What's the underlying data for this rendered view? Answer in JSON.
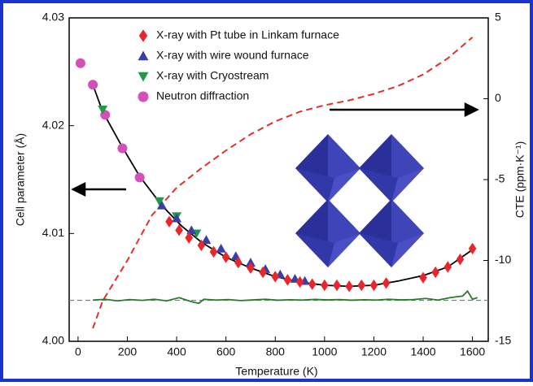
{
  "chart_data": {
    "type": "scatter",
    "xlabel": "Temperature (K)",
    "ylabel": "Cell parameter (Å)",
    "y2label": "CTE (ppm·K⁻¹)",
    "xlim": [
      -36,
      1664
    ],
    "xticks": [
      0,
      200,
      400,
      600,
      800,
      1000,
      1200,
      1400,
      1600
    ],
    "ylim": [
      4.0,
      4.03
    ],
    "yticks": [
      {
        "value": 4.0,
        "label": "4.00"
      },
      4.01,
      4.02,
      4.03
    ],
    "y2lim": [
      -15,
      5
    ],
    "y2ticks": [
      5,
      0,
      -5,
      -10,
      -15
    ],
    "legend": "top-left",
    "series": [
      {
        "name": "X-ray with Pt tube in Linkam furnace",
        "color": "#e8262b",
        "marker": "diamond",
        "x": [
          370,
          410,
          450,
          500,
          550,
          600,
          650,
          700,
          750,
          800,
          850,
          900,
          950,
          1000,
          1050,
          1100,
          1150,
          1200,
          1250,
          1400,
          1450,
          1500,
          1550,
          1600
        ],
        "values": [
          4.0111,
          4.0103,
          4.0096,
          4.0089,
          4.0083,
          4.0078,
          4.0073,
          4.0068,
          4.0064,
          4.006,
          4.0057,
          4.0055,
          4.0053,
          4.0052,
          4.0052,
          4.0051,
          4.0052,
          4.0052,
          4.0054,
          4.0059,
          4.0064,
          4.0069,
          4.0076,
          4.0086
        ]
      },
      {
        "name": "X-ray with wire wound furnace",
        "color": "#3a3fa5",
        "marker": "triangle-up",
        "x": [
          340,
          400,
          460,
          520,
          580,
          640,
          700,
          760,
          820,
          880,
          920
        ],
        "values": [
          4.0126,
          4.0114,
          4.0103,
          4.0094,
          4.0086,
          4.0079,
          4.0073,
          4.0067,
          4.0062,
          4.0058,
          4.0056
        ]
      },
      {
        "name": "X-ray with Cryostream",
        "color": "#1f9a48",
        "marker": "triangle-down",
        "x": [
          100,
          330,
          400,
          480
        ],
        "values": [
          4.0215,
          4.013,
          4.0116,
          4.01
        ]
      },
      {
        "name": "Neutron diffraction",
        "color": "#d64fb8",
        "marker": "circle",
        "x": [
          10,
          60,
          110,
          180,
          250
        ],
        "values": [
          4.0258,
          4.0238,
          4.021,
          4.0179,
          4.0152
        ]
      },
      {
        "color": "#000000",
        "marker": "line",
        "x": [
          60,
          100,
          180,
          250,
          340,
          420,
          500,
          600,
          700,
          800,
          900,
          1000,
          1100,
          1200,
          1300,
          1400,
          1500,
          1600
        ],
        "values": [
          4.0238,
          4.0213,
          4.018,
          4.0153,
          4.0126,
          4.0107,
          4.0092,
          4.0078,
          4.0068,
          4.006,
          4.0055,
          4.0052,
          4.0051,
          4.0052,
          4.0056,
          4.0061,
          4.0069,
          4.0085
        ]
      },
      {
        "color": "#e0302a",
        "marker": "dashed",
        "axis": "y2",
        "x": [
          60,
          100,
          200,
          300,
          400,
          500,
          600,
          700,
          800,
          900,
          1000,
          1100,
          1200,
          1300,
          1400,
          1500,
          1600
        ],
        "values": [
          -14.2,
          -12.5,
          -10,
          -7.2,
          -5.5,
          -4.3,
          -3.2,
          -2.2,
          -1.4,
          -0.8,
          -0.4,
          -0.1,
          0.3,
          0.8,
          1.5,
          2.5,
          3.8
        ]
      },
      {
        "color": "#2a7a2a",
        "marker": "line",
        "axis": "y2",
        "x": [
          60,
          110,
          160,
          210,
          260,
          310,
          360,
          410,
          460,
          490,
          510,
          560,
          610,
          660,
          710,
          760,
          810,
          860,
          910,
          960,
          1010,
          1060,
          1110,
          1160,
          1210,
          1260,
          1310,
          1360,
          1410,
          1460,
          1510,
          1560,
          1580,
          1600,
          1620
        ],
        "values": [
          -12.45,
          -12.4,
          -12.5,
          -12.42,
          -12.47,
          -12.4,
          -12.5,
          -12.3,
          -12.55,
          -12.65,
          -12.4,
          -12.45,
          -12.42,
          -12.48,
          -12.44,
          -12.4,
          -12.46,
          -12.43,
          -12.45,
          -12.41,
          -12.44,
          -12.42,
          -12.46,
          -12.43,
          -12.45,
          -12.4,
          -12.44,
          -12.42,
          -12.35,
          -12.45,
          -12.3,
          -12.2,
          -11.9,
          -12.4,
          -12.3
        ]
      }
    ],
    "ref_line": {
      "value": 4.0038,
      "color": "#7070c0"
    }
  }
}
